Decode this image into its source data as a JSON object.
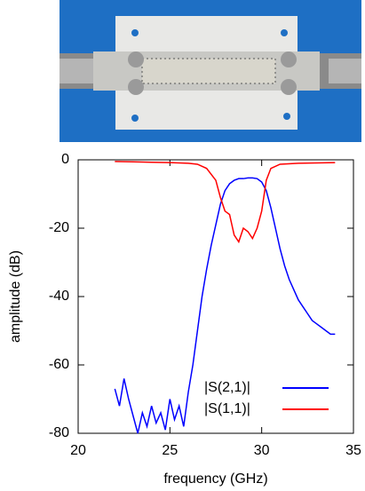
{
  "chart_data": {
    "type": "line",
    "xlabel": "frequency (GHz)",
    "ylabel": "amplitude (dB)",
    "xlim": [
      20,
      35
    ],
    "xticks": [
      20,
      25,
      30,
      35
    ],
    "ylim": [
      -80,
      0
    ],
    "yticks": [
      0,
      -20,
      -40,
      -60,
      -80
    ],
    "legend": "lower right",
    "series": [
      {
        "name": "|S(2,1)|",
        "color": "#0000ff",
        "x": [
          22,
          22.25,
          22.5,
          22.75,
          23,
          23.25,
          23.5,
          23.75,
          24,
          24.25,
          24.5,
          24.75,
          25,
          25.25,
          25.5,
          25.75,
          26,
          26.25,
          26.5,
          26.75,
          27,
          27.25,
          27.5,
          27.75,
          28,
          28.25,
          28.5,
          28.75,
          29,
          29.25,
          29.5,
          29.75,
          30,
          30.25,
          30.5,
          30.75,
          31,
          31.25,
          31.5,
          31.75,
          32,
          32.25,
          32.5,
          32.75,
          33,
          33.25,
          33.5,
          33.75,
          34
        ],
        "values": [
          -67,
          -72,
          -64,
          -70,
          -75,
          -80,
          -74,
          -78,
          -72,
          -77,
          -74,
          -79,
          -70,
          -76,
          -72,
          -78,
          -68,
          -60,
          -50,
          -40,
          -32,
          -25,
          -19,
          -13,
          -9,
          -7,
          -6,
          -5.5,
          -5.5,
          -5.3,
          -5.3,
          -5.5,
          -6.5,
          -9,
          -14,
          -20,
          -26,
          -31,
          -35,
          -38,
          -41,
          -43,
          -45,
          -47,
          -48,
          -49,
          -50,
          -51,
          -51
        ]
      },
      {
        "name": "|S(1,1)|",
        "color": "#ff0000",
        "x": [
          22,
          23,
          24,
          25,
          26,
          26.5,
          27,
          27.5,
          27.75,
          28,
          28.25,
          28.5,
          28.75,
          29,
          29.25,
          29.5,
          29.75,
          30,
          30.25,
          30.5,
          31,
          32,
          33,
          34
        ],
        "values": [
          -0.5,
          -0.6,
          -0.7,
          -0.8,
          -1,
          -1.3,
          -2.5,
          -6,
          -11,
          -15,
          -16,
          -22,
          -24,
          -20,
          -21,
          -23,
          -20,
          -15,
          -6,
          -2.5,
          -1.3,
          -1,
          -0.9,
          -0.8
        ]
      }
    ]
  }
}
